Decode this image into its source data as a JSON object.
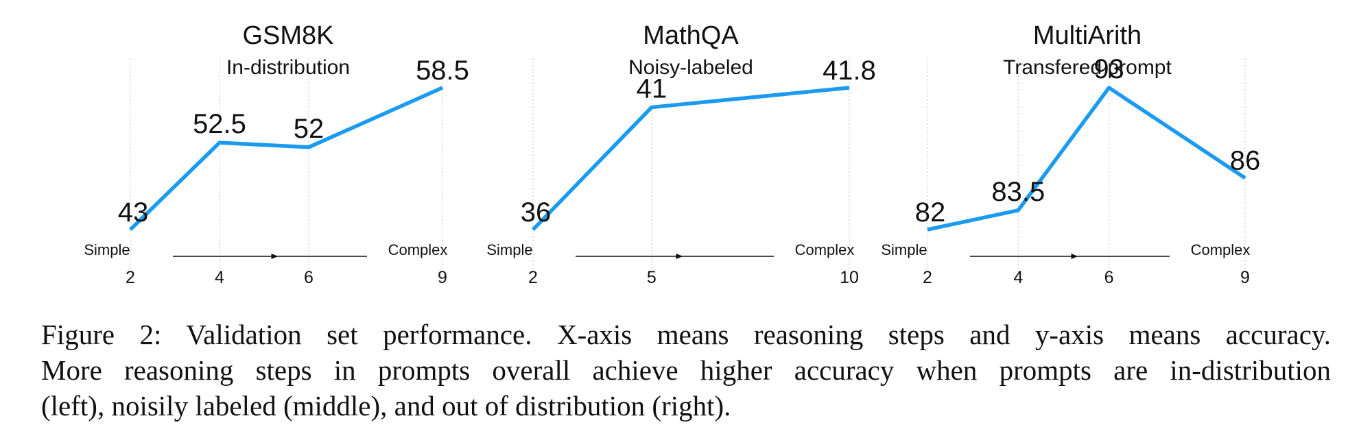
{
  "accent_color": "#1a9bf0",
  "arrow_labels": {
    "left": "Simple",
    "right": "Complex"
  },
  "chart_data": [
    {
      "type": "line",
      "title": "GSM8K",
      "subtitle": "In-distribution",
      "x": [
        2,
        4,
        6,
        9
      ],
      "y": [
        43,
        52.5,
        52,
        58.5
      ],
      "point_labels": [
        "43",
        "52.5",
        "52",
        "58.5"
      ],
      "x_tick_labels": [
        "2",
        "4",
        "6",
        "9"
      ],
      "grid": "vertical dotted"
    },
    {
      "type": "line",
      "title": "MathQA",
      "subtitle": "Noisy-labeled",
      "x": [
        2,
        5,
        10
      ],
      "y": [
        36,
        41,
        41.8
      ],
      "point_labels": [
        "36",
        "41",
        "41.8"
      ],
      "x_tick_labels": [
        "2",
        "5",
        "10"
      ],
      "grid": "vertical dotted"
    },
    {
      "type": "line",
      "title": "MultiArith",
      "subtitle": "Transfered prompt",
      "x": [
        2,
        4,
        6,
        9
      ],
      "y": [
        82,
        83.5,
        93,
        86
      ],
      "point_labels": [
        "82",
        "83.5",
        "93",
        "86"
      ],
      "x_tick_labels": [
        "2",
        "4",
        "6",
        "9"
      ],
      "grid": "vertical dotted"
    }
  ],
  "caption": {
    "lines": [
      "Figure 2:  Validation set performance.  X-axis means reasoning steps and y-axis means accuracy.",
      "More reasoning steps in prompts overall achieve higher accuracy when prompts are in-distribution",
      "(left), noisily labeled (middle), and out of distribution (right)."
    ]
  }
}
